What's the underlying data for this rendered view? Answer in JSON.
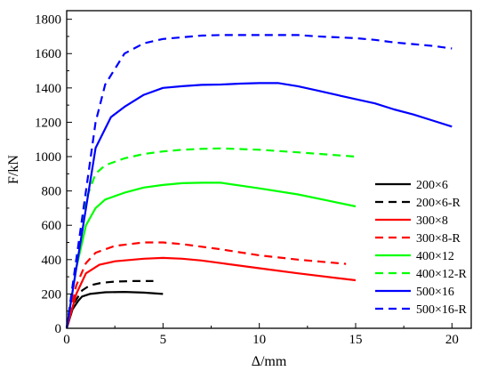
{
  "chart_data": {
    "type": "line",
    "title": "",
    "xlabel": "Δ/mm",
    "ylabel": "F/kN",
    "xlim": [
      0,
      21
    ],
    "ylim": [
      0,
      1850
    ],
    "xticks": [
      0,
      5,
      10,
      15,
      20
    ],
    "yticks": [
      0,
      200,
      400,
      600,
      800,
      1000,
      1200,
      1400,
      1600,
      1800
    ],
    "grid": false,
    "legend_position": "bottom-right",
    "series": [
      {
        "name": "200×6",
        "color": "#000000",
        "dash": "solid",
        "x": [
          0,
          0.3,
          0.6,
          0.8,
          1.2,
          2,
          3,
          4,
          5
        ],
        "y": [
          0,
          110,
          160,
          185,
          200,
          210,
          212,
          208,
          200
        ]
      },
      {
        "name": "200×6-R",
        "color": "#000000",
        "dash": "dashed",
        "x": [
          0,
          0.4,
          0.8,
          1.2,
          1.8,
          2.5,
          3.5,
          4.5
        ],
        "y": [
          0,
          150,
          220,
          250,
          265,
          272,
          275,
          275
        ]
      },
      {
        "name": "300×8",
        "color": "#ff0000",
        "dash": "solid",
        "x": [
          0,
          0.5,
          1,
          1.7,
          2.5,
          4,
          5,
          6,
          7,
          8,
          10,
          12,
          15
        ],
        "y": [
          0,
          200,
          320,
          370,
          390,
          405,
          410,
          405,
          395,
          380,
          350,
          320,
          280
        ]
      },
      {
        "name": "300×8-R",
        "color": "#ff0000",
        "dash": "dashed",
        "x": [
          0,
          0.5,
          1,
          1.5,
          2.5,
          4,
          5,
          6,
          8,
          10,
          12,
          14.5
        ],
        "y": [
          0,
          250,
          380,
          440,
          480,
          500,
          500,
          490,
          460,
          425,
          400,
          375
        ]
      },
      {
        "name": "400×12",
        "color": "#00ff00",
        "dash": "solid",
        "x": [
          0,
          0.5,
          1,
          1.5,
          2,
          3,
          4,
          5,
          6,
          7,
          8,
          10,
          12,
          13.5,
          15
        ],
        "y": [
          0,
          350,
          600,
          700,
          750,
          790,
          820,
          835,
          845,
          848,
          848,
          815,
          780,
          745,
          710
        ]
      },
      {
        "name": "400×12-R",
        "color": "#00ff00",
        "dash": "dashed",
        "x": [
          0,
          0.5,
          1,
          1.5,
          2,
          3,
          4,
          5,
          6,
          7,
          8,
          10,
          12,
          15
        ],
        "y": [
          0,
          400,
          750,
          900,
          950,
          990,
          1015,
          1030,
          1040,
          1045,
          1048,
          1040,
          1025,
          1000
        ]
      },
      {
        "name": "500×16",
        "color": "#0000ff",
        "dash": "solid",
        "x": [
          0,
          0.5,
          1,
          1.5,
          2.3,
          3,
          4,
          5,
          6,
          7,
          8,
          9,
          10,
          11,
          12,
          13,
          14,
          15,
          16,
          17,
          18,
          19,
          20
        ],
        "y": [
          0,
          350,
          700,
          1050,
          1230,
          1290,
          1360,
          1400,
          1410,
          1418,
          1420,
          1425,
          1428,
          1428,
          1410,
          1385,
          1360,
          1335,
          1310,
          1275,
          1245,
          1210,
          1175
        ]
      },
      {
        "name": "500×16-R",
        "color": "#0000ff",
        "dash": "dashed",
        "x": [
          0,
          0.5,
          1,
          1.5,
          2,
          3,
          4,
          5,
          6,
          7,
          8,
          9,
          10,
          11,
          12,
          13,
          14,
          15,
          16,
          17,
          18,
          19,
          20
        ],
        "y": [
          0,
          400,
          800,
          1200,
          1420,
          1600,
          1660,
          1685,
          1695,
          1705,
          1708,
          1708,
          1708,
          1708,
          1708,
          1700,
          1695,
          1690,
          1680,
          1665,
          1655,
          1645,
          1630
        ]
      }
    ]
  }
}
